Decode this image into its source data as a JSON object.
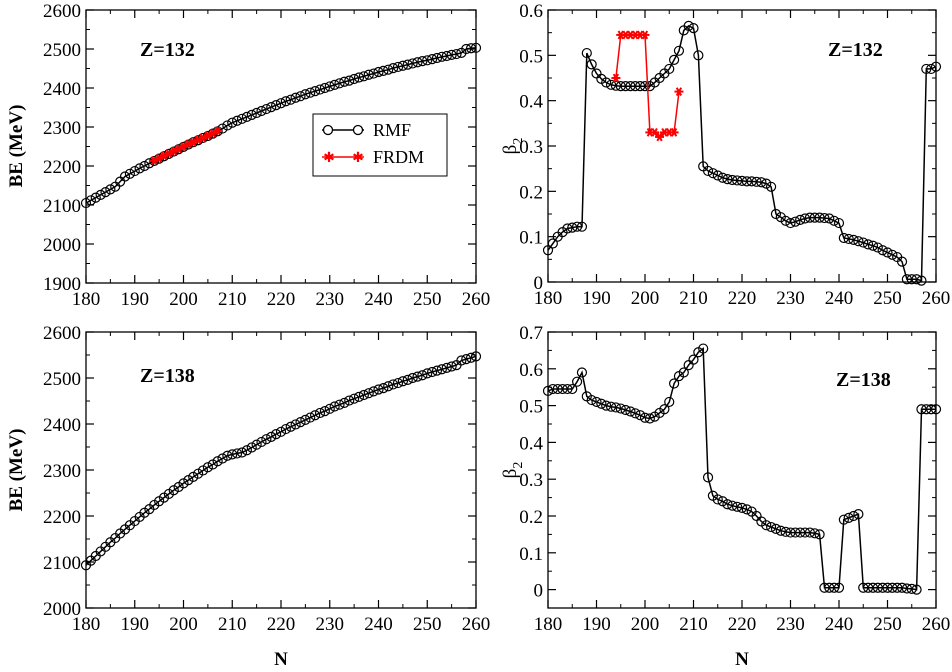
{
  "figure": {
    "xlabel": "N"
  },
  "colors": {
    "rmf": "#000000",
    "frdm": "#ff0000"
  },
  "chart_data": [
    {
      "id": "be132",
      "type": "line",
      "xlabel": "N",
      "ylabel": "BE (MeV)",
      "annotation": "Z=132",
      "xlim": [
        180,
        260
      ],
      "ylim": [
        1900,
        2600
      ],
      "xticks": [
        180,
        190,
        200,
        210,
        220,
        230,
        240,
        250,
        260
      ],
      "yticks": [
        1900,
        2000,
        2100,
        2200,
        2300,
        2400,
        2500,
        2600
      ],
      "legend": {
        "placement": "center",
        "entries": [
          "RMF",
          "FRDM"
        ]
      },
      "series": [
        {
          "name": "RMF",
          "marker": "open-circle",
          "color": "#000000",
          "x": [
            180,
            181,
            182,
            183,
            184,
            185,
            186,
            187,
            188,
            189,
            190,
            191,
            192,
            193,
            194,
            195,
            196,
            197,
            198,
            199,
            200,
            201,
            202,
            203,
            204,
            205,
            206,
            207,
            208,
            209,
            210,
            211,
            212,
            213,
            214,
            215,
            216,
            217,
            218,
            219,
            220,
            221,
            222,
            223,
            224,
            225,
            226,
            227,
            228,
            229,
            230,
            231,
            232,
            233,
            234,
            235,
            236,
            237,
            238,
            239,
            240,
            241,
            242,
            243,
            244,
            245,
            246,
            247,
            248,
            249,
            250,
            251,
            252,
            253,
            254,
            255,
            256,
            257,
            258,
            259,
            260
          ],
          "y": [
            2105,
            2112,
            2119,
            2126,
            2133,
            2140,
            2147,
            2160,
            2173,
            2180,
            2187,
            2194,
            2200,
            2207,
            2213,
            2219,
            2225,
            2231,
            2237,
            2243,
            2249,
            2255,
            2261,
            2266,
            2272,
            2277,
            2283,
            2289,
            2296,
            2304,
            2311,
            2316,
            2321,
            2326,
            2331,
            2336,
            2341,
            2346,
            2351,
            2356,
            2361,
            2366,
            2370,
            2375,
            2379,
            2384,
            2388,
            2392,
            2396,
            2400,
            2404,
            2408,
            2412,
            2416,
            2419,
            2423,
            2427,
            2430,
            2434,
            2437,
            2441,
            2444,
            2447,
            2451,
            2454,
            2457,
            2460,
            2463,
            2466,
            2469,
            2471,
            2474,
            2477,
            2480,
            2482,
            2485,
            2487,
            2490,
            2500,
            2502,
            2503
          ]
        },
        {
          "name": "FRDM",
          "marker": "star",
          "color": "#ff0000",
          "x": [
            194,
            195,
            196,
            197,
            198,
            199,
            200,
            201,
            202,
            203,
            204,
            205,
            206,
            207
          ],
          "y": [
            2214,
            2220,
            2226,
            2232,
            2238,
            2244,
            2250,
            2256,
            2261,
            2267,
            2272,
            2278,
            2284,
            2290
          ]
        }
      ]
    },
    {
      "id": "beta132",
      "type": "line",
      "xlabel": "N",
      "ylabel": "β2",
      "annotation": "Z=132",
      "xlim": [
        180,
        260
      ],
      "ylim": [
        0,
        0.6
      ],
      "xticks": [
        180,
        190,
        200,
        210,
        220,
        230,
        240,
        250,
        260
      ],
      "yticks": [
        0,
        0.1,
        0.2,
        0.3,
        0.4,
        0.5,
        0.6
      ],
      "series": [
        {
          "name": "RMF",
          "marker": "open-circle",
          "color": "#000000",
          "x": [
            180,
            181,
            182,
            183,
            184,
            185,
            186,
            187,
            188,
            189,
            190,
            191,
            192,
            193,
            194,
            195,
            196,
            197,
            198,
            199,
            200,
            201,
            202,
            203,
            204,
            205,
            206,
            207,
            208,
            209,
            210,
            211,
            212,
            213,
            214,
            215,
            216,
            217,
            218,
            219,
            220,
            221,
            222,
            223,
            224,
            225,
            226,
            227,
            228,
            229,
            230,
            231,
            232,
            233,
            234,
            235,
            236,
            237,
            238,
            239,
            240,
            241,
            242,
            243,
            244,
            245,
            246,
            247,
            248,
            249,
            250,
            251,
            252,
            253,
            254,
            255,
            256,
            257,
            258,
            259,
            260
          ],
          "y": [
            0.07,
            0.085,
            0.1,
            0.11,
            0.118,
            0.12,
            0.122,
            0.122,
            0.505,
            0.48,
            0.46,
            0.448,
            0.44,
            0.435,
            0.433,
            0.432,
            0.432,
            0.432,
            0.432,
            0.432,
            0.432,
            0.432,
            0.44,
            0.45,
            0.46,
            0.47,
            0.49,
            0.51,
            0.555,
            0.565,
            0.56,
            0.5,
            0.255,
            0.245,
            0.24,
            0.235,
            0.23,
            0.227,
            0.225,
            0.224,
            0.223,
            0.222,
            0.222,
            0.221,
            0.22,
            0.217,
            0.21,
            0.15,
            0.143,
            0.135,
            0.13,
            0.133,
            0.137,
            0.14,
            0.142,
            0.142,
            0.142,
            0.141,
            0.14,
            0.135,
            0.13,
            0.097,
            0.095,
            0.093,
            0.09,
            0.087,
            0.083,
            0.08,
            0.076,
            0.07,
            0.065,
            0.06,
            0.055,
            0.045,
            0.006,
            0.006,
            0.006,
            0.003,
            0.47,
            0.47,
            0.475
          ]
        },
        {
          "name": "FRDM",
          "marker": "star",
          "color": "#ff0000",
          "x": [
            194,
            195,
            196,
            197,
            198,
            199,
            200,
            201,
            202,
            203,
            204,
            205,
            206,
            207
          ],
          "y": [
            0.45,
            0.545,
            0.545,
            0.545,
            0.545,
            0.545,
            0.545,
            0.33,
            0.33,
            0.32,
            0.33,
            0.33,
            0.33,
            0.42
          ]
        }
      ]
    },
    {
      "id": "be138",
      "type": "line",
      "xlabel": "N",
      "ylabel": "BE (MeV)",
      "annotation": "Z=138",
      "xlim": [
        180,
        260
      ],
      "ylim": [
        2000,
        2600
      ],
      "xticks": [
        180,
        190,
        200,
        210,
        220,
        230,
        240,
        250,
        260
      ],
      "yticks": [
        2000,
        2100,
        2200,
        2300,
        2400,
        2500,
        2600
      ],
      "series": [
        {
          "name": "RMF",
          "marker": "open-circle",
          "color": "#000000",
          "x": [
            180,
            181,
            182,
            183,
            184,
            185,
            186,
            187,
            188,
            189,
            190,
            191,
            192,
            193,
            194,
            195,
            196,
            197,
            198,
            199,
            200,
            201,
            202,
            203,
            204,
            205,
            206,
            207,
            208,
            209,
            210,
            211,
            212,
            213,
            214,
            215,
            216,
            217,
            218,
            219,
            220,
            221,
            222,
            223,
            224,
            225,
            226,
            227,
            228,
            229,
            230,
            231,
            232,
            233,
            234,
            235,
            236,
            237,
            238,
            239,
            240,
            241,
            242,
            243,
            244,
            245,
            246,
            247,
            248,
            249,
            250,
            251,
            252,
            253,
            254,
            255,
            256,
            257,
            258,
            259,
            260
          ],
          "y": [
            2093,
            2103,
            2113,
            2123,
            2133,
            2143,
            2152,
            2162,
            2171,
            2180,
            2189,
            2198,
            2207,
            2215,
            2224,
            2232,
            2240,
            2248,
            2256,
            2263,
            2271,
            2278,
            2285,
            2292,
            2299,
            2306,
            2312,
            2319,
            2325,
            2331,
            2334,
            2336,
            2338,
            2343,
            2349,
            2355,
            2361,
            2367,
            2372,
            2378,
            2383,
            2389,
            2394,
            2399,
            2404,
            2409,
            2414,
            2419,
            2424,
            2428,
            2433,
            2438,
            2442,
            2446,
            2451,
            2455,
            2459,
            2463,
            2467,
            2471,
            2475,
            2478,
            2482,
            2486,
            2489,
            2493,
            2496,
            2500,
            2503,
            2506,
            2510,
            2513,
            2516,
            2519,
            2522,
            2525,
            2528,
            2538,
            2541,
            2544,
            2547
          ]
        }
      ]
    },
    {
      "id": "beta138",
      "type": "line",
      "xlabel": "N",
      "ylabel": "β2",
      "annotation": "Z=138",
      "xlim": [
        180,
        260
      ],
      "ylim": [
        -0.05,
        0.7
      ],
      "xticks": [
        180,
        190,
        200,
        210,
        220,
        230,
        240,
        250,
        260
      ],
      "yticks": [
        0,
        0.1,
        0.2,
        0.3,
        0.4,
        0.5,
        0.6,
        0.7
      ],
      "series": [
        {
          "name": "RMF",
          "marker": "open-circle",
          "color": "#000000",
          "x": [
            180,
            181,
            182,
            183,
            184,
            185,
            186,
            187,
            188,
            189,
            190,
            191,
            192,
            193,
            194,
            195,
            196,
            197,
            198,
            199,
            200,
            201,
            202,
            203,
            204,
            205,
            206,
            207,
            208,
            209,
            210,
            211,
            212,
            213,
            214,
            215,
            216,
            217,
            218,
            219,
            220,
            221,
            222,
            223,
            224,
            225,
            226,
            227,
            228,
            229,
            230,
            231,
            232,
            233,
            234,
            235,
            236,
            237,
            238,
            239,
            240,
            241,
            242,
            243,
            244,
            245,
            246,
            247,
            248,
            249,
            250,
            251,
            252,
            253,
            254,
            255,
            256,
            257,
            258,
            259,
            260
          ],
          "y": [
            0.54,
            0.545,
            0.545,
            0.545,
            0.545,
            0.545,
            0.565,
            0.59,
            0.525,
            0.515,
            0.51,
            0.505,
            0.5,
            0.497,
            0.495,
            0.492,
            0.488,
            0.484,
            0.479,
            0.474,
            0.467,
            0.465,
            0.47,
            0.48,
            0.49,
            0.51,
            0.56,
            0.58,
            0.59,
            0.61,
            0.625,
            0.645,
            0.655,
            0.305,
            0.255,
            0.245,
            0.24,
            0.232,
            0.228,
            0.225,
            0.222,
            0.218,
            0.212,
            0.2,
            0.185,
            0.175,
            0.17,
            0.165,
            0.16,
            0.157,
            0.155,
            0.155,
            0.155,
            0.155,
            0.155,
            0.153,
            0.15,
            0.005,
            0.005,
            0.005,
            0.005,
            0.19,
            0.195,
            0.2,
            0.205,
            0.005,
            0.005,
            0.005,
            0.005,
            0.005,
            0.005,
            0.005,
            0.005,
            0.005,
            0.003,
            0.002,
            0.0,
            0.49,
            0.49,
            0.49,
            0.49
          ]
        }
      ]
    }
  ]
}
